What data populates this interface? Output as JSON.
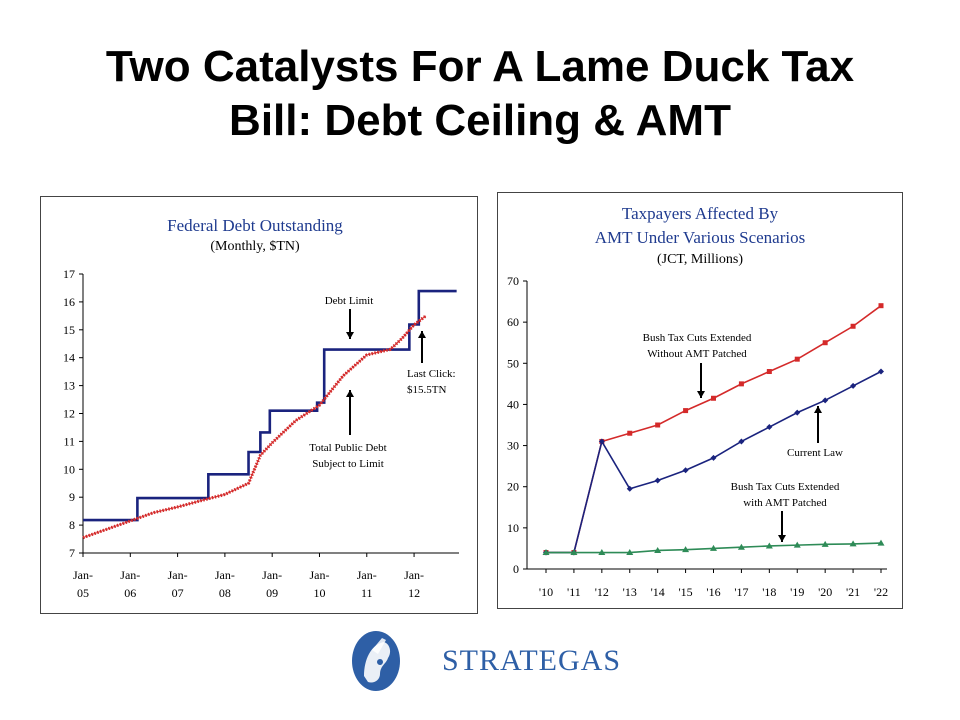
{
  "slide": {
    "title_line1": "Two Catalysts For A Lame Duck Tax",
    "title_line2": "Bill: Debt Ceiling & AMT",
    "brand": "STRATEGAS"
  },
  "colors": {
    "navy": "#1a237e",
    "red": "#d42a2a",
    "green": "#2e8b57",
    "title_blue": "#1f3b8f",
    "brand_blue": "#2e5fa6"
  },
  "chart_data": [
    {
      "type": "line",
      "title": "Federal Debt Outstanding",
      "subtitle": "(Monthly, $TN)",
      "ylim": [
        7,
        17
      ],
      "yticks": [
        "7",
        "8",
        "9",
        "10",
        "11",
        "12",
        "13",
        "14",
        "15",
        "16",
        "17"
      ],
      "xticks": [
        {
          "top": "Jan-",
          "bottom": "05"
        },
        {
          "top": "Jan-",
          "bottom": "06"
        },
        {
          "top": "Jan-",
          "bottom": "07"
        },
        {
          "top": "Jan-",
          "bottom": "08"
        },
        {
          "top": "Jan-",
          "bottom": "09"
        },
        {
          "top": "Jan-",
          "bottom": "10"
        },
        {
          "top": "Jan-",
          "bottom": "11"
        },
        {
          "top": "Jan-",
          "bottom": "12"
        }
      ],
      "xlim": [
        2005.0,
        2012.95
      ],
      "series": [
        {
          "name": "Debt Limit",
          "step": true,
          "x": [
            2005.0,
            2006.15,
            2007.65,
            2008.5,
            2008.75,
            2008.95,
            2009.15,
            2009.95,
            2010.1,
            2011.6,
            2011.9,
            2012.1,
            2012.9
          ],
          "y": [
            8.18,
            8.97,
            9.82,
            10.62,
            11.32,
            12.1,
            12.1,
            12.39,
            14.29,
            14.29,
            15.19,
            16.39,
            16.39
          ]
        },
        {
          "name": "Total Public Debt Subject to Limit",
          "x": [
            2005.0,
            2005.5,
            2006.0,
            2006.5,
            2007.0,
            2007.5,
            2008.0,
            2008.5,
            2008.75,
            2009.0,
            2009.5,
            2010.0,
            2010.5,
            2011.0,
            2011.5,
            2011.75,
            2012.0,
            2012.25
          ],
          "y": [
            7.55,
            7.85,
            8.15,
            8.45,
            8.65,
            8.88,
            9.1,
            9.5,
            10.5,
            10.95,
            11.75,
            12.3,
            13.35,
            14.1,
            14.3,
            14.7,
            15.18,
            15.5
          ]
        }
      ],
      "annotations": [
        {
          "lines": [
            "Debt Limit"
          ]
        },
        {
          "lines": [
            "Last Click:",
            "$15.5TN"
          ]
        },
        {
          "lines": [
            "Total Public Debt",
            "Subject to Limit"
          ]
        }
      ]
    },
    {
      "type": "line",
      "title": "Taxpayers Affected By",
      "title2": "AMT Under Various Scenarios",
      "subtitle": "(JCT, Millions)",
      "ylim": [
        0,
        70
      ],
      "yticks": [
        "0",
        "10",
        "20",
        "30",
        "40",
        "50",
        "60",
        "70"
      ],
      "categories": [
        "'10",
        "'11",
        "'12",
        "'13",
        "'14",
        "'15",
        "'16",
        "'17",
        "'18",
        "'19",
        "'20",
        "'21",
        "'22"
      ],
      "series": [
        {
          "name": "Bush Tax Cuts Extended Without AMT Patched",
          "values": [
            4,
            4,
            31,
            33,
            35,
            38.5,
            41.5,
            45,
            48,
            51,
            55,
            59,
            64
          ]
        },
        {
          "name": "Current Law",
          "values": [
            4,
            4,
            31,
            19.5,
            21.5,
            24,
            27,
            31,
            34.5,
            38,
            41,
            44.5,
            48
          ]
        },
        {
          "name": "Bush Tax Cuts Extended with AMT Patched",
          "values": [
            4,
            4,
            4,
            4,
            4.5,
            4.7,
            5,
            5.3,
            5.6,
            5.8,
            6,
            6.1,
            6.3
          ]
        }
      ],
      "annotations": [
        {
          "lines": [
            "Bush Tax Cuts Extended",
            "Without AMT Patched"
          ]
        },
        {
          "lines": [
            "Current Law"
          ]
        },
        {
          "lines": [
            "Bush Tax Cuts Extended",
            "with AMT Patched"
          ]
        }
      ]
    }
  ]
}
